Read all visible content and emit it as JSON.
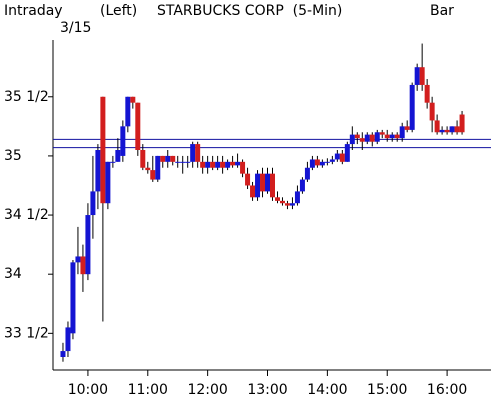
{
  "chart_data": {
    "type": "candlestick",
    "header_left": "Intraday",
    "date": "3/15",
    "axis_side": "(Left)",
    "title": "STARBUCKS CORP  (5-Min)",
    "chart_style": "Bar",
    "x": [
      575,
      580,
      585,
      590,
      595,
      600,
      605,
      610,
      615,
      620,
      625,
      630,
      635,
      640,
      645,
      650,
      655,
      660,
      665,
      670,
      675,
      680,
      685,
      690,
      695,
      700,
      705,
      710,
      715,
      720,
      725,
      730,
      735,
      740,
      745,
      750,
      755,
      760,
      765,
      770,
      775,
      780,
      785,
      790,
      795,
      800,
      805,
      810,
      815,
      820,
      825,
      830,
      835,
      840,
      845,
      850,
      855,
      860,
      865,
      870,
      875,
      880,
      885,
      890,
      895,
      900,
      905,
      910,
      915,
      920,
      925,
      930,
      935,
      940,
      945,
      950,
      955,
      960,
      965,
      970,
      975
    ],
    "open": [
      33.3,
      33.35,
      33.5,
      34.1,
      34.15,
      34.0,
      34.5,
      34.7,
      35.5,
      34.6,
      34.95,
      34.95,
      35.0,
      35.25,
      35.5,
      35.45,
      35.05,
      34.9,
      34.88,
      34.8,
      35.0,
      34.95,
      35.0,
      34.95,
      34.95,
      34.95,
      34.95,
      35.1,
      34.95,
      34.9,
      34.95,
      34.9,
      34.95,
      34.9,
      34.95,
      34.92,
      34.95,
      34.85,
      34.75,
      34.65,
      34.85,
      34.7,
      34.85,
      34.65,
      34.62,
      34.6,
      34.58,
      34.6,
      34.7,
      34.8,
      34.9,
      34.97,
      34.92,
      34.95,
      34.95,
      34.97,
      35.02,
      34.95,
      35.1,
      35.18,
      35.15,
      35.12,
      35.18,
      35.12,
      35.2,
      35.18,
      35.15,
      35.18,
      35.15,
      35.25,
      35.22,
      35.6,
      35.75,
      35.6,
      35.45,
      35.3,
      35.2,
      35.22,
      35.2,
      35.25,
      35.35
    ],
    "high": [
      33.42,
      33.6,
      34.12,
      34.4,
      34.25,
      34.6,
      35.0,
      35.1,
      35.5,
      34.95,
      35.0,
      35.15,
      35.3,
      35.5,
      35.5,
      35.45,
      35.1,
      34.95,
      35.0,
      35.0,
      35.0,
      35.05,
      35.0,
      35.0,
      35.0,
      35.0,
      35.12,
      35.12,
      35.0,
      35.0,
      35.0,
      35.0,
      35.0,
      34.97,
      35.0,
      35.02,
      34.97,
      34.9,
      34.78,
      34.88,
      34.9,
      34.9,
      34.9,
      34.7,
      34.65,
      34.62,
      34.65,
      34.75,
      34.82,
      34.95,
      35.0,
      35.0,
      34.97,
      34.98,
      35.0,
      35.05,
      35.05,
      35.12,
      35.25,
      35.2,
      35.2,
      35.2,
      35.2,
      35.22,
      35.22,
      35.22,
      35.2,
      35.2,
      35.28,
      35.3,
      35.62,
      35.78,
      35.95,
      35.65,
      35.5,
      35.35,
      35.25,
      35.25,
      35.25,
      35.3,
      35.38
    ],
    "low": [
      33.26,
      33.3,
      33.45,
      34.0,
      33.85,
      33.95,
      34.3,
      34.55,
      33.6,
      34.55,
      34.9,
      34.95,
      34.95,
      35.2,
      35.4,
      35.0,
      34.88,
      34.85,
      34.78,
      34.78,
      34.9,
      34.9,
      34.92,
      34.9,
      34.85,
      34.9,
      34.9,
      34.9,
      34.85,
      34.85,
      34.88,
      34.88,
      34.85,
      34.88,
      34.9,
      34.9,
      34.82,
      34.72,
      34.62,
      34.62,
      34.65,
      34.68,
      34.62,
      34.6,
      34.58,
      34.55,
      34.55,
      34.58,
      34.68,
      34.78,
      34.88,
      34.9,
      34.9,
      34.92,
      34.93,
      34.95,
      34.93,
      34.95,
      35.05,
      35.1,
      35.05,
      35.1,
      35.08,
      35.1,
      35.15,
      35.12,
      35.12,
      35.12,
      35.12,
      35.2,
      35.2,
      35.55,
      35.55,
      35.4,
      35.2,
      35.18,
      35.18,
      35.18,
      35.18,
      35.18,
      35.18
    ],
    "close": [
      33.35,
      33.55,
      34.1,
      34.15,
      34.0,
      34.5,
      34.7,
      35.05,
      34.6,
      34.95,
      34.95,
      35.05,
      35.25,
      35.5,
      35.45,
      35.05,
      34.9,
      34.88,
      34.8,
      35.0,
      34.95,
      35.0,
      34.95,
      34.95,
      34.95,
      34.95,
      35.1,
      34.95,
      34.9,
      34.95,
      34.9,
      34.95,
      34.9,
      34.95,
      34.92,
      34.95,
      34.85,
      34.75,
      34.65,
      34.85,
      34.7,
      34.85,
      34.65,
      34.62,
      34.6,
      34.58,
      34.6,
      34.7,
      34.8,
      34.9,
      34.97,
      34.92,
      34.95,
      34.95,
      34.97,
      35.02,
      34.95,
      35.1,
      35.18,
      35.15,
      35.12,
      35.18,
      35.12,
      35.2,
      35.18,
      35.15,
      35.18,
      35.15,
      35.25,
      35.22,
      35.6,
      35.75,
      35.6,
      35.45,
      35.3,
      35.2,
      35.22,
      35.2,
      35.25,
      35.2,
      35.2
    ],
    "up_color": "#1414d2",
    "down_color": "#d21e1e",
    "hlines": [
      35.14,
      35.07
    ],
    "hline_color": "#1010a0",
    "xlim": [
      565,
      1004
    ],
    "xticks": [
      {
        "value": 600,
        "label": "10:00"
      },
      {
        "value": 660,
        "label": "11:00"
      },
      {
        "value": 720,
        "label": "12:00"
      },
      {
        "value": 780,
        "label": "13:00"
      },
      {
        "value": 840,
        "label": "14:00"
      },
      {
        "value": 900,
        "label": "15:00"
      },
      {
        "value": 960,
        "label": "16:00"
      }
    ],
    "ylim": [
      33.19,
      35.98
    ],
    "yticks": [
      {
        "value": 33.5,
        "label": "33 1/2"
      },
      34,
      {
        "value": 34.5,
        "label": "34 1/2"
      },
      35,
      {
        "value": 35.5,
        "label": "35 1/2"
      }
    ]
  }
}
